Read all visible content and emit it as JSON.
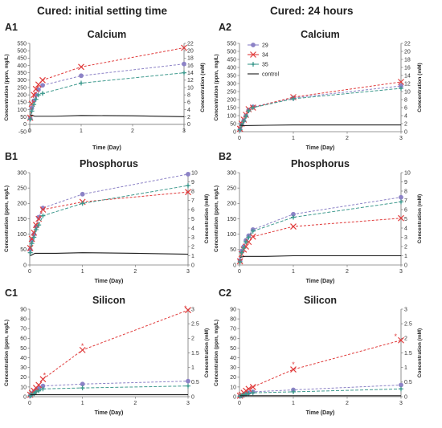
{
  "headers": {
    "left": "Cured: initial setting time",
    "right": "Cured: 24 hours"
  },
  "colors": {
    "s29": "#8c82c6",
    "s34": "#e03c3c",
    "s35": "#3f9a8e",
    "control": "#1a1a1a"
  },
  "chart_data": [
    {
      "id": "A1",
      "type": "line",
      "panel_label": "A1",
      "title": "Calcium",
      "xlabel": "Time (Day)",
      "ylabel": "Concentration (ppm, mg/L)",
      "y2label": "Concentration (mM)",
      "xlim": [
        0,
        3
      ],
      "xticks": [
        0,
        1,
        2,
        3
      ],
      "ylim": [
        -50,
        550
      ],
      "yticks": [
        -50,
        0,
        50,
        100,
        150,
        200,
        250,
        300,
        350,
        400,
        450,
        500,
        550
      ],
      "y2lim": [
        -2,
        22
      ],
      "y2ticks": [
        0,
        2,
        4,
        6,
        8,
        10,
        12,
        14,
        16,
        18,
        20,
        22
      ],
      "series": [
        {
          "name": "29",
          "marker": "circle",
          "x": [
            0.01,
            0.04,
            0.08,
            0.12,
            0.17,
            0.25,
            1,
            3
          ],
          "y": [
            40,
            110,
            160,
            200,
            235,
            265,
            330,
            410
          ]
        },
        {
          "name": "34",
          "marker": "x",
          "x": [
            0.01,
            0.04,
            0.08,
            0.12,
            0.17,
            0.25,
            1,
            3
          ],
          "y": [
            45,
            140,
            200,
            240,
            270,
            300,
            390,
            520
          ]
        },
        {
          "name": "35",
          "marker": "plus",
          "x": [
            0.01,
            0.04,
            0.08,
            0.12,
            0.17,
            0.25,
            1,
            3
          ],
          "y": [
            35,
            90,
            135,
            170,
            200,
            210,
            280,
            350
          ]
        },
        {
          "name": "control",
          "marker": "none",
          "x": [
            0.01,
            0.1,
            0.5,
            1,
            2,
            3
          ],
          "y": [
            65,
            55,
            55,
            60,
            58,
            52
          ]
        }
      ],
      "annotations": []
    },
    {
      "id": "A2",
      "type": "line",
      "panel_label": "A2",
      "title": "Calcium",
      "xlabel": "Time (Day)",
      "ylabel": "Concentration (ppm, mg/L)",
      "y2label": "Concentration (mM)",
      "xlim": [
        0,
        3
      ],
      "xticks": [
        0,
        1,
        2,
        3
      ],
      "ylim": [
        0,
        550
      ],
      "yticks": [
        0,
        50,
        100,
        150,
        200,
        250,
        300,
        350,
        400,
        450,
        500,
        550
      ],
      "y2lim": [
        0,
        22
      ],
      "y2ticks": [
        0,
        2,
        4,
        6,
        8,
        10,
        12,
        14,
        16,
        18,
        20,
        22
      ],
      "legend": {
        "position": "top-left",
        "entries": [
          "29",
          "34",
          "35",
          "control"
        ]
      },
      "series": [
        {
          "name": "29",
          "marker": "circle",
          "x": [
            0.01,
            0.04,
            0.08,
            0.12,
            0.17,
            0.25,
            1,
            3
          ],
          "y": [
            15,
            45,
            70,
            100,
            135,
            155,
            210,
            285
          ]
        },
        {
          "name": "34",
          "marker": "x",
          "x": [
            0.01,
            0.04,
            0.08,
            0.12,
            0.17,
            0.25,
            1,
            3
          ],
          "y": [
            18,
            50,
            75,
            105,
            140,
            150,
            215,
            310
          ]
        },
        {
          "name": "35",
          "marker": "plus",
          "x": [
            0.01,
            0.04,
            0.08,
            0.12,
            0.17,
            0.25,
            1,
            3
          ],
          "y": [
            12,
            40,
            65,
            95,
            130,
            150,
            205,
            270
          ]
        },
        {
          "name": "control",
          "marker": "none",
          "x": [
            0.01,
            0.1,
            0.5,
            1,
            2,
            3
          ],
          "y": [
            40,
            38,
            40,
            42,
            42,
            42
          ]
        }
      ],
      "annotations": []
    },
    {
      "id": "B1",
      "type": "line",
      "panel_label": "B1",
      "title": "Phosphorus",
      "xlabel": "Time (Day)",
      "ylabel": "Concentration (ppm, mg/L)",
      "y2label": "Concentration (mM)",
      "xlim": [
        0,
        3
      ],
      "xticks": [
        0,
        1,
        2,
        3
      ],
      "ylim": [
        0,
        300
      ],
      "yticks": [
        0,
        50,
        100,
        150,
        200,
        250,
        300
      ],
      "y2lim": [
        0,
        10
      ],
      "y2ticks": [
        0,
        1,
        2,
        3,
        4,
        5,
        6,
        7,
        8,
        9,
        10
      ],
      "series": [
        {
          "name": "29",
          "marker": "circle",
          "x": [
            0.01,
            0.04,
            0.08,
            0.12,
            0.17,
            0.25,
            1,
            3
          ],
          "y": [
            50,
            80,
            100,
            125,
            155,
            185,
            230,
            295
          ]
        },
        {
          "name": "34",
          "marker": "x",
          "x": [
            0.01,
            0.04,
            0.08,
            0.12,
            0.17,
            0.25,
            1,
            3
          ],
          "y": [
            55,
            85,
            105,
            130,
            150,
            180,
            205,
            237
          ]
        },
        {
          "name": "35",
          "marker": "plus",
          "x": [
            0.01,
            0.04,
            0.08,
            0.12,
            0.17,
            0.25,
            1,
            3
          ],
          "y": [
            40,
            70,
            90,
            115,
            130,
            160,
            200,
            258
          ]
        },
        {
          "name": "control",
          "marker": "none",
          "x": [
            0.01,
            0.1,
            0.5,
            1,
            2,
            3
          ],
          "y": [
            30,
            38,
            38,
            40,
            38,
            35
          ]
        }
      ],
      "annotations": []
    },
    {
      "id": "B2",
      "type": "line",
      "panel_label": "B2",
      "title": "Phosphorus",
      "xlabel": "Time (Day)",
      "ylabel": "Concentration (ppm, mg/L)",
      "y2label": "Concentration (mM)",
      "xlim": [
        0,
        3
      ],
      "xticks": [
        0,
        1,
        2,
        3
      ],
      "ylim": [
        0,
        300
      ],
      "yticks": [
        0,
        50,
        100,
        150,
        200,
        250,
        300
      ],
      "y2lim": [
        0,
        10
      ],
      "y2ticks": [
        0,
        1,
        2,
        3,
        4,
        5,
        6,
        7,
        8,
        9,
        10
      ],
      "series": [
        {
          "name": "29",
          "marker": "circle",
          "x": [
            0.01,
            0.04,
            0.08,
            0.12,
            0.17,
            0.25,
            1,
            3
          ],
          "y": [
            15,
            45,
            60,
            80,
            95,
            115,
            165,
            220
          ]
        },
        {
          "name": "34",
          "marker": "x",
          "x": [
            0.01,
            0.04,
            0.08,
            0.12,
            0.17,
            0.25,
            1,
            3
          ],
          "y": [
            12,
            35,
            50,
            60,
            75,
            92,
            125,
            152
          ]
        },
        {
          "name": "35",
          "marker": "plus",
          "x": [
            0.01,
            0.04,
            0.08,
            0.12,
            0.17,
            0.25,
            1,
            3
          ],
          "y": [
            10,
            40,
            55,
            75,
            90,
            110,
            155,
            205
          ]
        },
        {
          "name": "control",
          "marker": "none",
          "x": [
            0.01,
            0.1,
            0.5,
            1,
            2,
            3
          ],
          "y": [
            25,
            28,
            28,
            30,
            30,
            30
          ]
        }
      ],
      "annotations": []
    },
    {
      "id": "C1",
      "type": "line",
      "panel_label": "C1",
      "title": "Silicon",
      "xlabel": "Time (Day)",
      "ylabel": "Concentration (ppm, mg/L)",
      "y2label": "Concentration (mM)",
      "xlim": [
        0,
        3
      ],
      "xticks": [
        0,
        1,
        2,
        3
      ],
      "ylim": [
        0,
        90
      ],
      "yticks": [
        0,
        10,
        20,
        30,
        40,
        50,
        60,
        70,
        80,
        90
      ],
      "y2lim": [
        0,
        3
      ],
      "y2ticks": [
        0,
        0.5,
        1,
        1.5,
        2,
        2.5,
        3
      ],
      "series": [
        {
          "name": "29",
          "marker": "circle",
          "x": [
            0.01,
            0.04,
            0.08,
            0.12,
            0.17,
            0.25,
            1,
            3
          ],
          "y": [
            1,
            3,
            5,
            7,
            9,
            11,
            13,
            16
          ]
        },
        {
          "name": "34",
          "marker": "x",
          "x": [
            0.01,
            0.04,
            0.08,
            0.12,
            0.17,
            0.25,
            1,
            3
          ],
          "y": [
            2,
            4,
            6,
            9,
            12,
            18,
            48,
            89
          ]
        },
        {
          "name": "35",
          "marker": "plus",
          "x": [
            0.01,
            0.04,
            0.08,
            0.12,
            0.17,
            0.25,
            1,
            3
          ],
          "y": [
            1,
            2,
            3,
            5,
            6,
            8,
            9,
            11
          ]
        },
        {
          "name": "control",
          "marker": "none",
          "x": [
            0.01,
            0.1,
            0.5,
            1,
            2,
            3
          ],
          "y": [
            2,
            2,
            2,
            2,
            2,
            2
          ]
        }
      ],
      "annotations": [
        {
          "text": "*",
          "x": 0.28,
          "y": 22
        },
        {
          "text": "*",
          "x": 1.0,
          "y": 52
        },
        {
          "text": "*",
          "x": 2.95,
          "y": 91
        }
      ]
    },
    {
      "id": "C2",
      "type": "line",
      "panel_label": "C2",
      "title": "Silicon",
      "xlabel": "Time (Day)",
      "ylabel": "Concentration (ppm, mg/L)",
      "y2label": "Concentration (mM)",
      "xlim": [
        0,
        3
      ],
      "xticks": [
        0,
        1,
        2,
        3
      ],
      "ylim": [
        0,
        90
      ],
      "yticks": [
        0,
        10,
        20,
        30,
        40,
        50,
        60,
        70,
        80,
        90
      ],
      "y2lim": [
        0,
        3
      ],
      "y2ticks": [
        0,
        0.5,
        1,
        1.5,
        2,
        2.5,
        3
      ],
      "series": [
        {
          "name": "29",
          "marker": "circle",
          "x": [
            0.01,
            0.04,
            0.08,
            0.12,
            0.17,
            0.25,
            1,
            3
          ],
          "y": [
            0.5,
            1,
            2,
            3,
            4,
            5,
            7,
            12
          ]
        },
        {
          "name": "34",
          "marker": "x",
          "x": [
            0.01,
            0.04,
            0.08,
            0.12,
            0.17,
            0.25,
            1,
            3
          ],
          "y": [
            1,
            2,
            4,
            6,
            8,
            10,
            28,
            58
          ]
        },
        {
          "name": "35",
          "marker": "plus",
          "x": [
            0.01,
            0.04,
            0.08,
            0.12,
            0.17,
            0.25,
            1,
            3
          ],
          "y": [
            0.5,
            1,
            2,
            2.5,
            3,
            4,
            5,
            8
          ]
        },
        {
          "name": "control",
          "marker": "none",
          "x": [
            0.01,
            0.1,
            0.5,
            1,
            2,
            3
          ],
          "y": [
            1,
            1,
            1,
            1,
            1,
            1
          ]
        }
      ],
      "annotations": [
        {
          "text": "*",
          "x": 1.0,
          "y": 33
        },
        {
          "text": "*",
          "x": 2.9,
          "y": 62
        }
      ]
    }
  ]
}
